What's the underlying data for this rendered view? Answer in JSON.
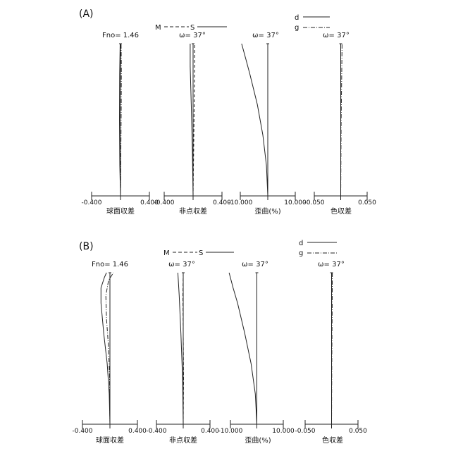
{
  "panel_labels": [
    "(A)",
    "(B)"
  ],
  "headings": {
    "fno": "Fno= 1.46",
    "field": "ω= 37°"
  },
  "legends": {
    "astig": {
      "m": "M",
      "s": "S"
    },
    "chroma": {
      "d": "d",
      "g": "g"
    }
  },
  "axis_names": [
    "球面収差",
    "非点収差",
    "歪曲(%)",
    "色収差"
  ],
  "tick_labels": {
    "spherical": [
      "-0.400",
      "0.400"
    ],
    "astigmatism": [
      "-0.400",
      "0.400"
    ],
    "distortion": [
      "-10.000",
      "10.000"
    ],
    "chromatic": [
      "-0.050",
      "0.050"
    ]
  },
  "colors": {
    "ink": "#222222",
    "background": "#ffffff"
  },
  "chart_data": [
    {
      "id": "A-spherical",
      "type": "line",
      "row": "A",
      "xlim": [
        -0.4,
        0.4
      ],
      "ylim": [
        0,
        1
      ],
      "series": [
        {
          "style": "solid",
          "points": [
            [
              0,
              0
            ],
            [
              -0.01,
              0.2
            ],
            [
              -0.015,
              0.5
            ],
            [
              -0.012,
              0.8
            ],
            [
              -0.005,
              1.0
            ]
          ]
        },
        {
          "style": "dashdot",
          "points": [
            [
              0,
              0
            ],
            [
              0.005,
              0.3
            ],
            [
              0.01,
              0.6
            ],
            [
              0.012,
              0.85
            ],
            [
              0.008,
              1.0
            ]
          ]
        }
      ]
    },
    {
      "id": "A-astigmatism",
      "type": "line",
      "row": "A",
      "xlim": [
        -0.4,
        0.4
      ],
      "ylim": [
        0,
        1
      ],
      "series": [
        {
          "name": "M",
          "style": "solid",
          "points": [
            [
              0,
              0
            ],
            [
              -0.01,
              0.3
            ],
            [
              -0.025,
              0.6
            ],
            [
              -0.04,
              0.85
            ],
            [
              -0.04,
              1.0
            ]
          ]
        },
        {
          "name": "S",
          "style": "dashed",
          "points": [
            [
              0,
              0
            ],
            [
              0.008,
              0.3
            ],
            [
              0.015,
              0.6
            ],
            [
              0.02,
              0.85
            ],
            [
              0.02,
              1.0
            ]
          ]
        }
      ]
    },
    {
      "id": "A-distortion",
      "type": "line",
      "row": "A",
      "xlim": [
        -10,
        10
      ],
      "ylim": [
        0,
        1
      ],
      "series": [
        {
          "style": "solid",
          "points": [
            [
              0,
              0
            ],
            [
              -0.5,
              0.2
            ],
            [
              -1.8,
              0.4
            ],
            [
              -3.8,
              0.6
            ],
            [
              -6.5,
              0.8
            ],
            [
              -8,
              0.9
            ],
            [
              -9.5,
              1.0
            ]
          ]
        }
      ]
    },
    {
      "id": "A-chromatic",
      "type": "line",
      "row": "A",
      "xlim": [
        -0.05,
        0.05
      ],
      "ylim": [
        0,
        1
      ],
      "series": [
        {
          "name": "d",
          "style": "solid",
          "points": [
            [
              0,
              0
            ],
            [
              0,
              0.5
            ],
            [
              0,
              1.0
            ]
          ]
        },
        {
          "name": "g",
          "style": "dashdot",
          "points": [
            [
              0,
              0
            ],
            [
              0.0008,
              0.5
            ],
            [
              0.0018,
              0.8
            ],
            [
              0.0025,
              1.0
            ]
          ]
        }
      ]
    },
    {
      "id": "B-spherical",
      "type": "line",
      "row": "B",
      "xlim": [
        -0.4,
        0.4
      ],
      "ylim": [
        0,
        1
      ],
      "series": [
        {
          "style": "solid",
          "points": [
            [
              0,
              0
            ],
            [
              -0.01,
              0.2
            ],
            [
              -0.04,
              0.4
            ],
            [
              -0.09,
              0.6
            ],
            [
              -0.13,
              0.8
            ],
            [
              -0.13,
              0.9
            ],
            [
              -0.08,
              0.97
            ],
            [
              -0.05,
              1.0
            ]
          ]
        },
        {
          "style": "dashdot",
          "points": [
            [
              0,
              0
            ],
            [
              -0.005,
              0.3
            ],
            [
              -0.02,
              0.5
            ],
            [
              -0.05,
              0.7
            ],
            [
              -0.06,
              0.85
            ],
            [
              -0.02,
              0.95
            ],
            [
              0.05,
              1.0
            ]
          ]
        }
      ]
    },
    {
      "id": "B-astigmatism",
      "type": "line",
      "row": "B",
      "xlim": [
        -0.4,
        0.4
      ],
      "ylim": [
        0,
        1
      ],
      "series": [
        {
          "name": "M",
          "style": "solid",
          "points": [
            [
              0,
              0
            ],
            [
              -0.01,
              0.3
            ],
            [
              -0.035,
              0.6
            ],
            [
              -0.06,
              0.85
            ],
            [
              -0.08,
              1.0
            ]
          ]
        },
        {
          "name": "S",
          "style": "dashed",
          "points": [
            [
              0,
              0
            ],
            [
              0.005,
              0.3
            ],
            [
              0.0,
              0.6
            ],
            [
              -0.005,
              0.85
            ],
            [
              0.0,
              1.0
            ]
          ]
        }
      ]
    },
    {
      "id": "B-distortion",
      "type": "line",
      "row": "B",
      "xlim": [
        -10,
        10
      ],
      "ylim": [
        0,
        1
      ],
      "series": [
        {
          "style": "solid",
          "points": [
            [
              0,
              0
            ],
            [
              -0.6,
              0.2
            ],
            [
              -2.2,
              0.4
            ],
            [
              -4.6,
              0.6
            ],
            [
              -7.3,
              0.8
            ],
            [
              -9,
              0.9
            ],
            [
              -10.5,
              1.0
            ]
          ]
        }
      ]
    },
    {
      "id": "B-chromatic",
      "type": "line",
      "row": "B",
      "xlim": [
        -0.05,
        0.05
      ],
      "ylim": [
        0,
        1
      ],
      "series": [
        {
          "name": "d",
          "style": "solid",
          "points": [
            [
              0,
              0
            ],
            [
              0,
              0.5
            ],
            [
              0,
              1.0
            ]
          ]
        },
        {
          "name": "g",
          "style": "dashdot",
          "points": [
            [
              0,
              0
            ],
            [
              0.0006,
              0.5
            ],
            [
              0.0012,
              0.8
            ],
            [
              0.0015,
              1.0
            ]
          ]
        }
      ]
    }
  ]
}
